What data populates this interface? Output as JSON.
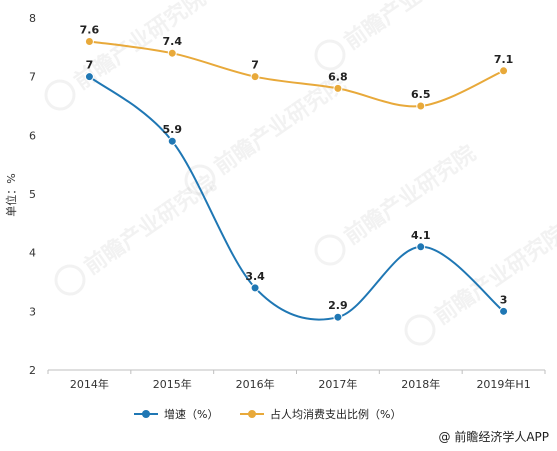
{
  "chart_data": {
    "type": "line",
    "categories": [
      "2014年",
      "2015年",
      "2016年",
      "2017年",
      "2018年",
      "2019年H1"
    ],
    "series": [
      {
        "name": "增速（%）",
        "values": [
          7,
          5.9,
          3.4,
          2.9,
          4.1,
          3
        ],
        "labels": [
          "7",
          "5.9",
          "3.4",
          "2.9",
          "4.1",
          "3"
        ],
        "color": "#1f77b4"
      },
      {
        "name": "占人均消费支出比例（%）",
        "values": [
          7.6,
          7.4,
          7,
          6.8,
          6.5,
          7.1
        ],
        "labels": [
          "7.6",
          "7.4",
          "7",
          "6.8",
          "6.5",
          "7.1"
        ],
        "color": "#e8a93a"
      }
    ],
    "ylabel": "单位：%",
    "ylim": [
      2,
      8
    ],
    "yticks": [
      2,
      3,
      4,
      5,
      6,
      7,
      8
    ],
    "grid": false,
    "legend_position": "bottom-center",
    "smooth": true
  },
  "watermark": {
    "text": "前瞻产业研究院"
  },
  "credit": {
    "text": "@ 前瞻经济学人APP"
  }
}
